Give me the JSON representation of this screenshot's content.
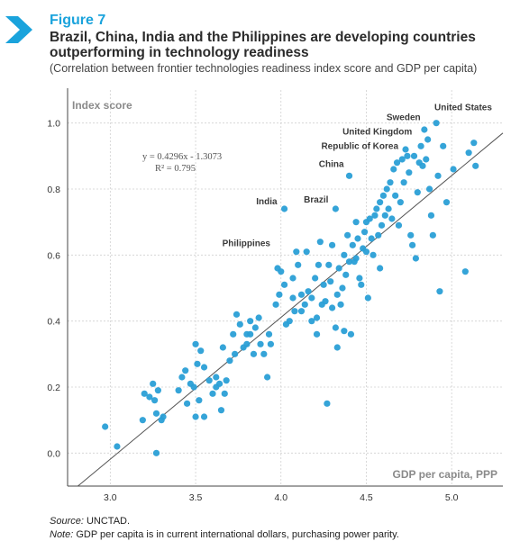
{
  "figure_label": "Figure 7",
  "title": "Brazil, China, India and the Philippines are developing countries outperforming in technology readiness",
  "subtitle": "(Correlation between frontier technologies readiness index score and GDP per capita)",
  "source_label": "Source:",
  "source_text": " UNCTAD.",
  "note_label": "Note:",
  "note_text": " GDP per capita is in current international dollars, purchasing power parity.",
  "colors": {
    "accent": "#1aa3dc",
    "point": "#2a9fd6",
    "trend": "#555555",
    "grid": "#d0d0d0"
  },
  "chart_data": {
    "type": "scatter",
    "xlabel": "GDP per capita, PPP",
    "ylabel": "Index score",
    "xlim": [
      2.75,
      5.3
    ],
    "ylim": [
      -0.1,
      1.1
    ],
    "x_ticks": [
      "3.0",
      "3.5",
      "4.0",
      "4.5",
      "5.0"
    ],
    "x_tick_values": [
      3.0,
      3.5,
      4.0,
      4.5,
      5.0
    ],
    "y_ticks": [
      "0.0",
      "0.2",
      "0.4",
      "0.6",
      "0.8",
      "1.0"
    ],
    "y_tick_values": [
      0.0,
      0.2,
      0.4,
      0.6,
      0.8,
      1.0
    ],
    "equation": "y = 0.4296x - 1.3073",
    "r_squared": "R² = 0.795",
    "trendline": {
      "slope": 0.4296,
      "intercept": -1.3073
    },
    "annotations": [
      {
        "text": "United States",
        "x": 4.92,
        "y": 1.0
      },
      {
        "text": "Sweden",
        "x": 4.86,
        "y": 0.97
      },
      {
        "text": "United Kingdom",
        "x": 4.8,
        "y": 0.94
      },
      {
        "text": "Republic of Korea",
        "x": 4.73,
        "y": 0.9
      },
      {
        "text": "China",
        "x": 4.4,
        "y": 0.84
      },
      {
        "text": "India",
        "x": 4.02,
        "y": 0.74
      },
      {
        "text": "Brazil",
        "x": 4.32,
        "y": 0.74
      },
      {
        "text": "Philippines",
        "x": 3.98,
        "y": 0.61
      }
    ],
    "points": [
      [
        2.97,
        0.08
      ],
      [
        3.04,
        0.02
      ],
      [
        3.19,
        0.1
      ],
      [
        3.2,
        0.18
      ],
      [
        3.23,
        0.17
      ],
      [
        3.25,
        0.21
      ],
      [
        3.27,
        0.0
      ],
      [
        3.27,
        0.12
      ],
      [
        3.28,
        0.19
      ],
      [
        3.3,
        0.1
      ],
      [
        3.26,
        0.16
      ],
      [
        3.31,
        0.11
      ],
      [
        3.4,
        0.19
      ],
      [
        3.42,
        0.23
      ],
      [
        3.45,
        0.15
      ],
      [
        3.47,
        0.21
      ],
      [
        3.49,
        0.2
      ],
      [
        3.5,
        0.11
      ],
      [
        3.5,
        0.33
      ],
      [
        3.51,
        0.27
      ],
      [
        3.53,
        0.31
      ],
      [
        3.52,
        0.16
      ],
      [
        3.55,
        0.11
      ],
      [
        3.58,
        0.22
      ],
      [
        3.6,
        0.18
      ],
      [
        3.62,
        0.23
      ],
      [
        3.64,
        0.21
      ],
      [
        3.65,
        0.13
      ],
      [
        3.67,
        0.18
      ],
      [
        3.68,
        0.22
      ],
      [
        3.7,
        0.28
      ],
      [
        3.72,
        0.36
      ],
      [
        3.73,
        0.3
      ],
      [
        3.74,
        0.42
      ],
      [
        3.76,
        0.39
      ],
      [
        3.78,
        0.32
      ],
      [
        3.8,
        0.33
      ],
      [
        3.82,
        0.36
      ],
      [
        3.82,
        0.4
      ],
      [
        3.84,
        0.3
      ],
      [
        3.85,
        0.38
      ],
      [
        3.87,
        0.41
      ],
      [
        3.88,
        0.33
      ],
      [
        3.9,
        0.3
      ],
      [
        3.92,
        0.23
      ],
      [
        3.93,
        0.36
      ],
      [
        3.94,
        0.33
      ],
      [
        3.97,
        0.45
      ],
      [
        3.99,
        0.48
      ],
      [
        3.98,
        0.56
      ],
      [
        4.0,
        0.55
      ],
      [
        4.02,
        0.51
      ],
      [
        4.03,
        0.39
      ],
      [
        4.05,
        0.4
      ],
      [
        4.07,
        0.47
      ],
      [
        4.08,
        0.43
      ],
      [
        4.1,
        0.57
      ],
      [
        4.12,
        0.43
      ],
      [
        4.14,
        0.45
      ],
      [
        4.15,
        0.61
      ],
      [
        4.16,
        0.49
      ],
      [
        4.18,
        0.47
      ],
      [
        4.2,
        0.53
      ],
      [
        4.21,
        0.36
      ],
      [
        4.22,
        0.57
      ],
      [
        4.23,
        0.64
      ],
      [
        4.24,
        0.45
      ],
      [
        4.25,
        0.51
      ],
      [
        4.27,
        0.15
      ],
      [
        4.28,
        0.57
      ],
      [
        4.29,
        0.52
      ],
      [
        4.3,
        0.63
      ],
      [
        4.3,
        0.44
      ],
      [
        4.32,
        0.38
      ],
      [
        4.33,
        0.32
      ],
      [
        4.34,
        0.56
      ],
      [
        4.35,
        0.45
      ],
      [
        4.36,
        0.5
      ],
      [
        4.37,
        0.6
      ],
      [
        4.38,
        0.54
      ],
      [
        4.39,
        0.66
      ],
      [
        4.4,
        0.58
      ],
      [
        4.41,
        0.36
      ],
      [
        4.42,
        0.63
      ],
      [
        4.43,
        0.58
      ],
      [
        4.44,
        0.59
      ],
      [
        4.45,
        0.65
      ],
      [
        4.46,
        0.53
      ],
      [
        4.47,
        0.51
      ],
      [
        4.48,
        0.62
      ],
      [
        4.49,
        0.67
      ],
      [
        4.5,
        0.7
      ],
      [
        4.51,
        0.47
      ],
      [
        4.52,
        0.71
      ],
      [
        4.53,
        0.65
      ],
      [
        4.54,
        0.6
      ],
      [
        4.55,
        0.72
      ],
      [
        4.56,
        0.74
      ],
      [
        4.57,
        0.66
      ],
      [
        4.58,
        0.76
      ],
      [
        4.59,
        0.69
      ],
      [
        4.6,
        0.78
      ],
      [
        4.61,
        0.72
      ],
      [
        4.62,
        0.8
      ],
      [
        4.63,
        0.74
      ],
      [
        4.64,
        0.82
      ],
      [
        4.65,
        0.71
      ],
      [
        4.66,
        0.86
      ],
      [
        4.67,
        0.78
      ],
      [
        4.68,
        0.88
      ],
      [
        4.69,
        0.69
      ],
      [
        4.7,
        0.76
      ],
      [
        4.71,
        0.89
      ],
      [
        4.72,
        0.82
      ],
      [
        4.73,
        0.92
      ],
      [
        4.74,
        0.9
      ],
      [
        4.75,
        0.85
      ],
      [
        4.76,
        0.66
      ],
      [
        4.77,
        0.63
      ],
      [
        4.78,
        0.9
      ],
      [
        4.79,
        0.59
      ],
      [
        4.8,
        0.79
      ],
      [
        4.81,
        0.88
      ],
      [
        4.82,
        0.93
      ],
      [
        4.83,
        0.87
      ],
      [
        4.84,
        0.98
      ],
      [
        4.85,
        0.89
      ],
      [
        4.86,
        0.95
      ],
      [
        4.87,
        0.8
      ],
      [
        4.88,
        0.72
      ],
      [
        4.89,
        0.66
      ],
      [
        4.91,
        1.0
      ],
      [
        4.92,
        0.84
      ],
      [
        4.93,
        0.49
      ],
      [
        4.95,
        0.93
      ],
      [
        4.97,
        0.76
      ],
      [
        5.01,
        0.86
      ],
      [
        5.08,
        0.55
      ],
      [
        5.1,
        0.91
      ],
      [
        5.13,
        0.94
      ],
      [
        5.14,
        0.87
      ],
      [
        4.02,
        0.74
      ],
      [
        4.32,
        0.74
      ],
      [
        4.4,
        0.84
      ],
      [
        3.55,
        0.26
      ],
      [
        3.62,
        0.2
      ],
      [
        3.44,
        0.25
      ],
      [
        3.8,
        0.36
      ],
      [
        3.66,
        0.32
      ],
      [
        4.07,
        0.53
      ],
      [
        4.18,
        0.4
      ],
      [
        4.26,
        0.46
      ],
      [
        4.33,
        0.48
      ],
      [
        4.58,
        0.56
      ],
      [
        4.44,
        0.7
      ],
      [
        4.5,
        0.61
      ],
      [
        4.09,
        0.61
      ],
      [
        4.21,
        0.41
      ],
      [
        4.37,
        0.37
      ],
      [
        4.12,
        0.48
      ]
    ]
  }
}
